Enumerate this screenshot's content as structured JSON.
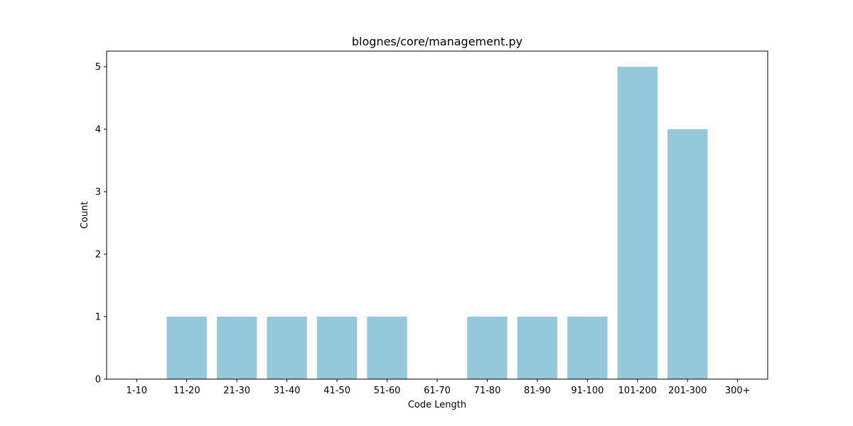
{
  "chart_data": {
    "type": "bar",
    "title": "blognes/core/management.py",
    "xlabel": "Code Length",
    "ylabel": "Count",
    "categories": [
      "1-10",
      "11-20",
      "21-30",
      "31-40",
      "41-50",
      "51-60",
      "61-70",
      "71-80",
      "81-90",
      "91-100",
      "101-200",
      "201-300",
      "300+"
    ],
    "values": [
      0,
      1,
      1,
      1,
      1,
      1,
      0,
      1,
      1,
      1,
      5,
      4,
      0
    ],
    "ylim": [
      0,
      5.25
    ],
    "yticks": [
      0,
      1,
      2,
      3,
      4,
      5
    ],
    "bar_color": "#96c8dc",
    "grid": false,
    "legend": "none"
  }
}
